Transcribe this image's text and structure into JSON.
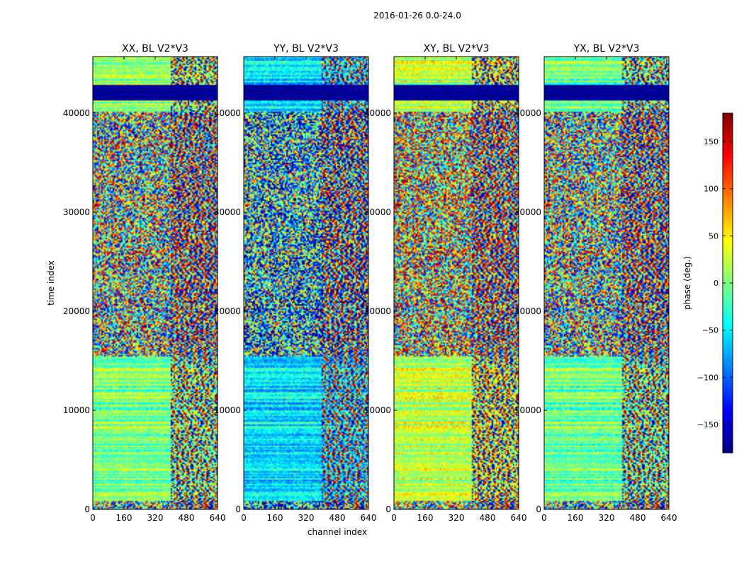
{
  "chart_data": {
    "type": "heatmap",
    "suptitle": "2016-01-26 0.0-24.0",
    "x_tick_labels": [
      "0",
      "160",
      "320",
      "480",
      "640"
    ],
    "y_tick_labels": [
      "0",
      "10000",
      "20000",
      "30000",
      "40000"
    ],
    "x_ticks": [
      0,
      160,
      320,
      480,
      640
    ],
    "y_ticks": [
      0,
      10000,
      20000,
      30000,
      40000
    ],
    "xlim": [
      0,
      640
    ],
    "ylim": [
      0,
      45700
    ],
    "xlabel": "channel index",
    "ylabel": "time index",
    "colorbar": {
      "label": "phase (deg.)",
      "vmin": -180,
      "vmax": 180,
      "ticks": [
        150,
        100,
        50,
        0,
        -50,
        -100,
        -150
      ],
      "tick_labels": [
        "150",
        "100",
        "50",
        "0",
        "−50",
        "−100",
        "−150"
      ],
      "colormap": "jet",
      "colors": [
        "#00007f",
        "#0000ff",
        "#007fff",
        "#00ffff",
        "#7fff7f",
        "#ffff00",
        "#ff7f00",
        "#ff0000",
        "#7f0000"
      ]
    },
    "panels": [
      {
        "title": "XX, BL V2*V3",
        "bias": 0
      },
      {
        "title": "YY, BL V2*V3",
        "bias": -90
      },
      {
        "title": "XY, BL V2*V3",
        "bias": 40
      },
      {
        "title": "YX, BL V2*V3",
        "bias": -10
      }
    ]
  }
}
